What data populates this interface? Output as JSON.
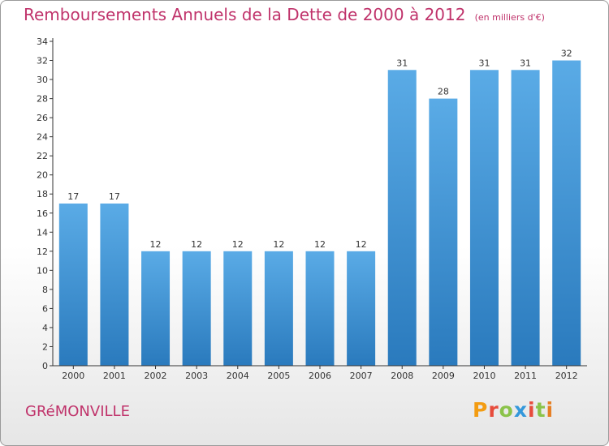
{
  "header": {
    "title": "Remboursements Annuels de la Dette de 2000 à 2012",
    "unit": "(en milliers d'€)"
  },
  "footer": {
    "commune": "GRéMONVILLE",
    "logo": {
      "letters": [
        "P",
        "r",
        "o",
        "x",
        "i",
        "t",
        "i"
      ],
      "colors": [
        "#f39c12",
        "#e74c3c",
        "#8bc34a",
        "#3498db",
        "#e74c3c",
        "#8bc34a",
        "#e67e22"
      ]
    }
  },
  "chart_data": {
    "type": "bar",
    "categories": [
      "2000",
      "2001",
      "2002",
      "2003",
      "2004",
      "2005",
      "2006",
      "2007",
      "2008",
      "2009",
      "2010",
      "2011",
      "2012"
    ],
    "values": [
      17,
      17,
      12,
      12,
      12,
      12,
      12,
      12,
      31,
      28,
      31,
      31,
      32
    ],
    "ylim": [
      0,
      34
    ],
    "yticks": [
      0,
      2,
      4,
      6,
      8,
      10,
      12,
      14,
      16,
      18,
      20,
      22,
      24,
      26,
      28,
      30,
      32,
      34
    ],
    "grid": false,
    "colors": {
      "bar_top": "#5aabe6",
      "bar_bottom": "#2a7abd",
      "axis": "#333333",
      "label": "#333333"
    }
  }
}
